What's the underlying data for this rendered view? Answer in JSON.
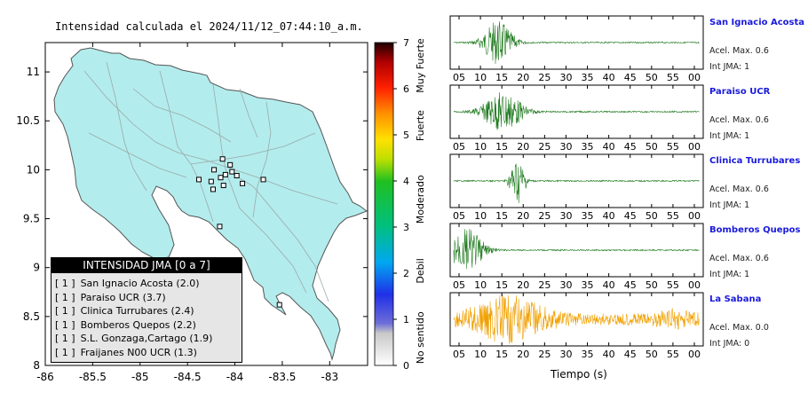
{
  "map": {
    "title": "Intensidad calculada el 2024/11/12_07:44:10_a.m.",
    "x_ticks": [
      "-86",
      "-85.5",
      "-85",
      "-84.5",
      "-84",
      "-83.5",
      "-83"
    ],
    "y_ticks": [
      "11",
      "10.5",
      "10",
      "9.5",
      "9",
      "8.5",
      "8"
    ],
    "land_color": "#b3ecec",
    "legend": {
      "title": "INTENSIDAD JMA [0 a 7]",
      "items": [
        {
          "code": "[ 1 ]",
          "label": "San Ignacio Acosta (2.0)"
        },
        {
          "code": "[ 1 ]",
          "label": "Paraiso UCR (3.7)"
        },
        {
          "code": "[ 1 ]",
          "label": "Clinica Turrubares (2.4)"
        },
        {
          "code": "[ 1 ]",
          "label": "Bomberos Quepos (2.2)"
        },
        {
          "code": "[ 1 ]",
          "label": "S.L. Gonzaga,Cartago (1.9)"
        },
        {
          "code": "[ 1 ]",
          "label": "Fraijanes N00 UCR (1.3)"
        }
      ]
    }
  },
  "colorbar": {
    "ticks": [
      "0",
      "1",
      "2",
      "3",
      "4",
      "5",
      "6",
      "7"
    ],
    "categories": [
      "No sentido",
      "Debil",
      "Moderado",
      "Fuerte",
      "Muy Fuerte"
    ],
    "range": [
      0,
      7
    ]
  },
  "waveforms": {
    "x_ticks": [
      "05",
      "10",
      "15",
      "20",
      "25",
      "30",
      "35",
      "40",
      "45",
      "50",
      "55",
      "00"
    ],
    "xlabel": "Tiempo (s)",
    "stations": [
      {
        "name": "San Ignacio Acosta",
        "accel": "Acel. Max. 0.6",
        "jma": "Int JMA: 1",
        "color": "#1f7a1f"
      },
      {
        "name": "Paraiso UCR",
        "accel": "Acel. Max. 0.6",
        "jma": "Int JMA: 1",
        "color": "#1f7a1f"
      },
      {
        "name": "Clinica Turrubares",
        "accel": "Acel. Max. 0.6",
        "jma": "Int JMA: 1",
        "color": "#1f7a1f"
      },
      {
        "name": "Bomberos Quepos",
        "accel": "Acel. Max. 0.6",
        "jma": "Int JMA: 1",
        "color": "#1f7a1f"
      },
      {
        "name": "La Sabana",
        "accel": "Acel. Max. 0.0",
        "jma": "Int JMA: 0",
        "color": "#f0a000"
      }
    ]
  },
  "chart_data": {
    "type": "scatter",
    "xlim": [
      -86,
      -82.6
    ],
    "ylim": [
      8,
      11.3
    ],
    "stations_plotted": [
      {
        "lon": -84.13,
        "lat": 10.11
      },
      {
        "lon": -84.05,
        "lat": 10.05
      },
      {
        "lon": -84.22,
        "lat": 10.0
      },
      {
        "lon": -84.38,
        "lat": 9.9
      },
      {
        "lon": -84.25,
        "lat": 9.88
      },
      {
        "lon": -84.15,
        "lat": 9.92
      },
      {
        "lon": -84.1,
        "lat": 9.95
      },
      {
        "lon": -84.03,
        "lat": 9.98
      },
      {
        "lon": -83.98,
        "lat": 9.94
      },
      {
        "lon": -83.92,
        "lat": 9.86
      },
      {
        "lon": -84.12,
        "lat": 9.84
      },
      {
        "lon": -84.23,
        "lat": 9.8
      },
      {
        "lon": -83.7,
        "lat": 9.9
      },
      {
        "lon": -84.16,
        "lat": 9.42
      },
      {
        "lon": -83.53,
        "lat": 8.62
      }
    ]
  }
}
